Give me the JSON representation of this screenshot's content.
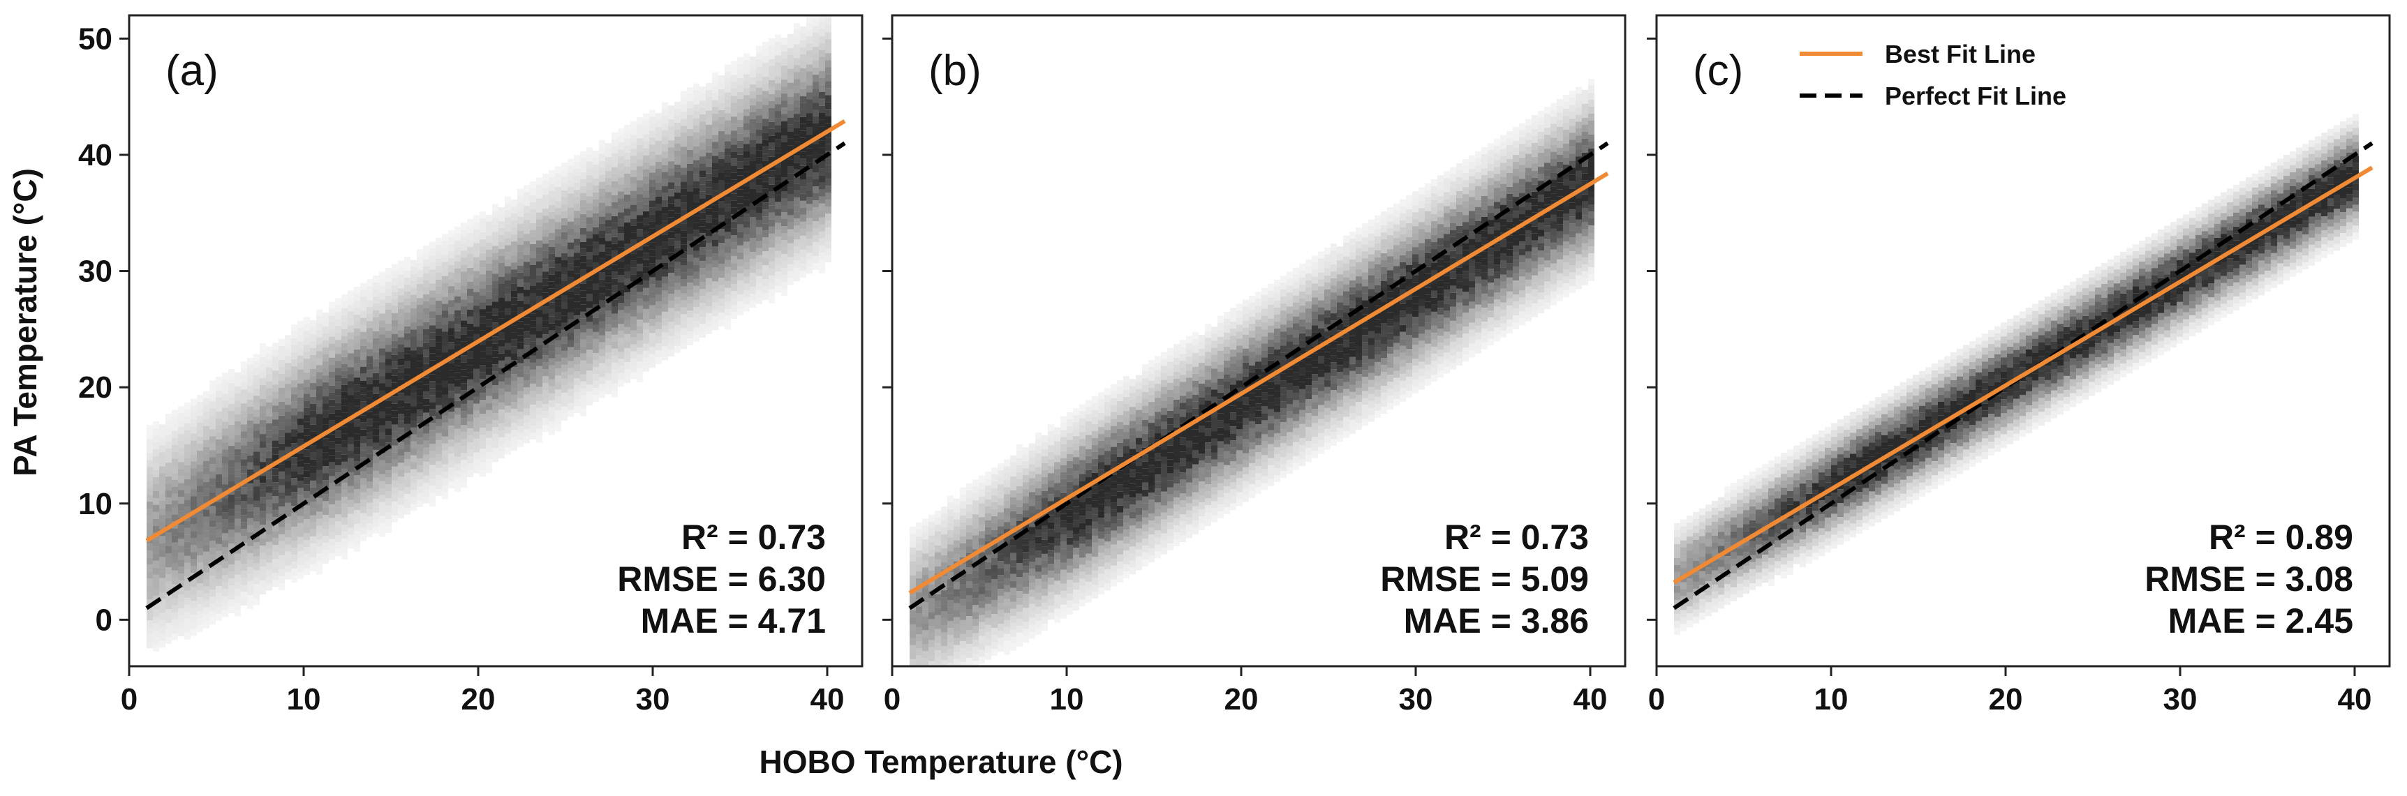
{
  "figure": {
    "xlabel": "HOBO Temperature (°C)",
    "ylabel": "PA Temperature (°C)"
  },
  "legend": {
    "best_fit_label": "Best Fit Line",
    "perfect_fit_label": "Perfect Fit Line"
  },
  "colors": {
    "best_fit": "#F08A34",
    "perfect_fit": "#000000",
    "density": "#2b2b2b"
  },
  "chart_data": [
    {
      "type": "density-scatter",
      "panel_label": "(a)",
      "xlim": [
        0,
        42
      ],
      "ylim": [
        -4,
        52
      ],
      "x_ticks": [
        0,
        10,
        20,
        30,
        40
      ],
      "y_ticks": [
        0,
        10,
        20,
        30,
        40,
        50
      ],
      "best_fit": {
        "x": [
          1,
          41
        ],
        "y": [
          6.8,
          42.9
        ]
      },
      "perfect_fit": {
        "x": [
          1,
          41
        ],
        "y": [
          1,
          41
        ]
      },
      "stats": {
        "r2": "R² = 0.73",
        "rmse": "RMSE = 6.30",
        "mae": "MAE = 4.71"
      },
      "density": {
        "slope": 0.9,
        "intercept": 5.8,
        "spread": 4.5,
        "x_min": 1,
        "x_max": 40
      }
    },
    {
      "type": "density-scatter",
      "panel_label": "(b)",
      "xlim": [
        0,
        42
      ],
      "ylim": [
        -4,
        52
      ],
      "x_ticks": [
        0,
        10,
        20,
        30,
        40
      ],
      "y_ticks": [
        0,
        10,
        20,
        30,
        40,
        50
      ],
      "best_fit": {
        "x": [
          1,
          41
        ],
        "y": [
          2.3,
          38.4
        ]
      },
      "perfect_fit": {
        "x": [
          1,
          41
        ],
        "y": [
          1,
          41
        ]
      },
      "stats": {
        "r2": "R² = 0.73",
        "rmse": "RMSE = 5.09",
        "mae": "MAE = 3.86"
      },
      "density": {
        "slope": 0.96,
        "intercept": -0.5,
        "spread": 3.5,
        "x_min": 1,
        "x_max": 40
      }
    },
    {
      "type": "density-scatter",
      "panel_label": "(c)",
      "xlim": [
        0,
        42
      ],
      "ylim": [
        -4,
        52
      ],
      "x_ticks": [
        0,
        10,
        20,
        30,
        40
      ],
      "y_ticks": [
        0,
        10,
        20,
        30,
        40,
        50
      ],
      "best_fit": {
        "x": [
          1,
          41
        ],
        "y": [
          3.2,
          38.9
        ]
      },
      "perfect_fit": {
        "x": [
          1,
          41
        ],
        "y": [
          1,
          41
        ]
      },
      "stats": {
        "r2": "R² = 0.89",
        "rmse": "RMSE = 3.08",
        "mae": "MAE = 2.45"
      },
      "density": {
        "slope": 0.89,
        "intercept": 2.7,
        "spread": 2.2,
        "x_min": 1,
        "x_max": 40
      }
    }
  ]
}
